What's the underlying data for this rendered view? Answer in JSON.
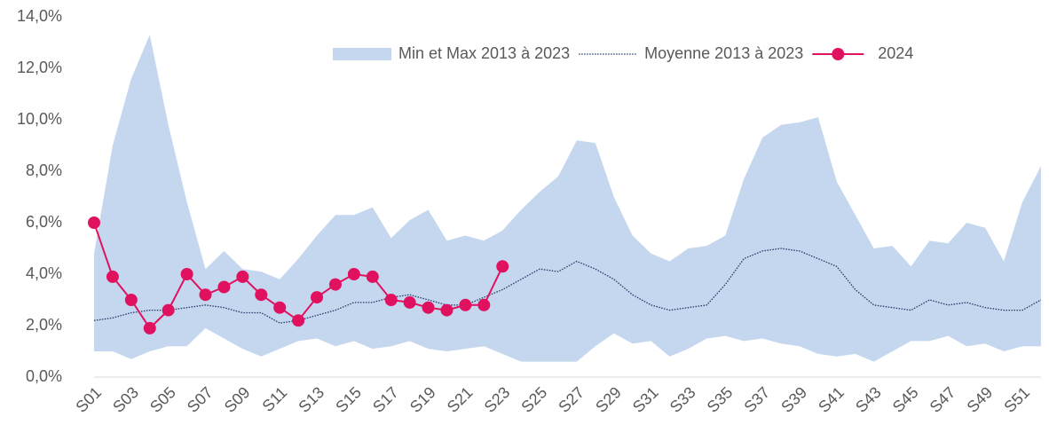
{
  "chart_data": {
    "type": "line",
    "categories": [
      "S01",
      null,
      "S03",
      null,
      "S05",
      null,
      "S07",
      null,
      "S09",
      null,
      "S11",
      null,
      "S13",
      null,
      "S15",
      null,
      "S17",
      null,
      "S19",
      null,
      "S21",
      null,
      "S23",
      null,
      "S25",
      null,
      "S27",
      null,
      "S29",
      null,
      "S31",
      null,
      "S33",
      null,
      "S35",
      null,
      "S37",
      null,
      "S39",
      null,
      "S41",
      null,
      "S43",
      null,
      "S45",
      null,
      "S47",
      null,
      "S49",
      null,
      "S51",
      null
    ],
    "series": [
      {
        "name": "Min et Max 2013 à 2023",
        "type": "range",
        "color": "#c5d7ef",
        "low": [
          1.0,
          1.0,
          0.7,
          1.0,
          1.2,
          1.2,
          1.9,
          1.5,
          1.1,
          0.8,
          1.1,
          1.4,
          1.5,
          1.2,
          1.4,
          1.1,
          1.2,
          1.4,
          1.1,
          1.0,
          1.1,
          1.2,
          0.9,
          0.6,
          0.6,
          0.6,
          0.6,
          1.2,
          1.7,
          1.3,
          1.4,
          0.8,
          1.1,
          1.5,
          1.6,
          1.4,
          1.5,
          1.3,
          1.2,
          0.9,
          0.8,
          0.9,
          0.6,
          1.0,
          1.4,
          1.4,
          1.6,
          1.2,
          1.3,
          1.0,
          1.2,
          1.2
        ],
        "high": [
          4.8,
          9.0,
          11.6,
          13.3,
          9.8,
          6.8,
          4.2,
          4.9,
          4.2,
          4.1,
          3.8,
          4.6,
          5.5,
          6.3,
          6.3,
          6.6,
          5.4,
          6.1,
          6.5,
          5.3,
          5.5,
          5.3,
          5.7,
          6.5,
          7.2,
          7.8,
          9.2,
          9.1,
          7.0,
          5.5,
          4.8,
          4.5,
          5.0,
          5.1,
          5.5,
          7.7,
          9.3,
          9.8,
          9.9,
          10.1,
          7.6,
          6.3,
          5.0,
          5.1,
          4.3,
          5.3,
          5.2,
          6.0,
          5.8,
          4.5,
          6.8,
          8.2
        ]
      },
      {
        "name": "Moyenne 2013 à 2023",
        "type": "dotted",
        "color": "#1f3864",
        "values": [
          2.2,
          2.3,
          2.5,
          2.6,
          2.6,
          2.7,
          2.8,
          2.7,
          2.5,
          2.5,
          2.1,
          2.2,
          2.4,
          2.6,
          2.9,
          2.9,
          3.1,
          3.2,
          3.0,
          2.8,
          2.8,
          3.1,
          3.4,
          3.8,
          4.2,
          4.1,
          4.5,
          4.2,
          3.8,
          3.2,
          2.8,
          2.6,
          2.7,
          2.8,
          3.6,
          4.6,
          4.9,
          5.0,
          4.9,
          4.6,
          4.3,
          3.4,
          2.8,
          2.7,
          2.6,
          3.0,
          2.8,
          2.9,
          2.7,
          2.6,
          2.6,
          3.0
        ]
      },
      {
        "name": "2024",
        "type": "marker-line",
        "color": "#e0115f",
        "values": [
          6.0,
          3.9,
          3.0,
          1.9,
          2.6,
          4.0,
          3.2,
          3.5,
          3.9,
          3.2,
          2.7,
          2.2,
          3.1,
          3.6,
          4.0,
          3.9,
          3.0,
          2.9,
          2.7,
          2.6,
          2.8,
          2.8,
          4.3,
          null,
          null,
          null,
          null,
          null,
          null,
          null,
          null,
          null,
          null,
          null,
          null,
          null,
          null,
          null,
          null,
          null,
          null,
          null,
          null,
          null,
          null,
          null,
          null,
          null,
          null,
          null,
          null,
          null
        ]
      }
    ],
    "ylim": [
      0,
      14
    ],
    "yticks": [
      {
        "value": 0,
        "label": "0,0%"
      },
      {
        "value": 2,
        "label": "2,0%"
      },
      {
        "value": 4,
        "label": "4,0%"
      },
      {
        "value": 6,
        "label": "6,0%"
      },
      {
        "value": 8,
        "label": "8,0%"
      },
      {
        "value": 10,
        "label": "10,0%"
      },
      {
        "value": 12,
        "label": "12,0%"
      },
      {
        "value": 14,
        "label": "14,0%"
      }
    ],
    "legend": "top-right"
  }
}
